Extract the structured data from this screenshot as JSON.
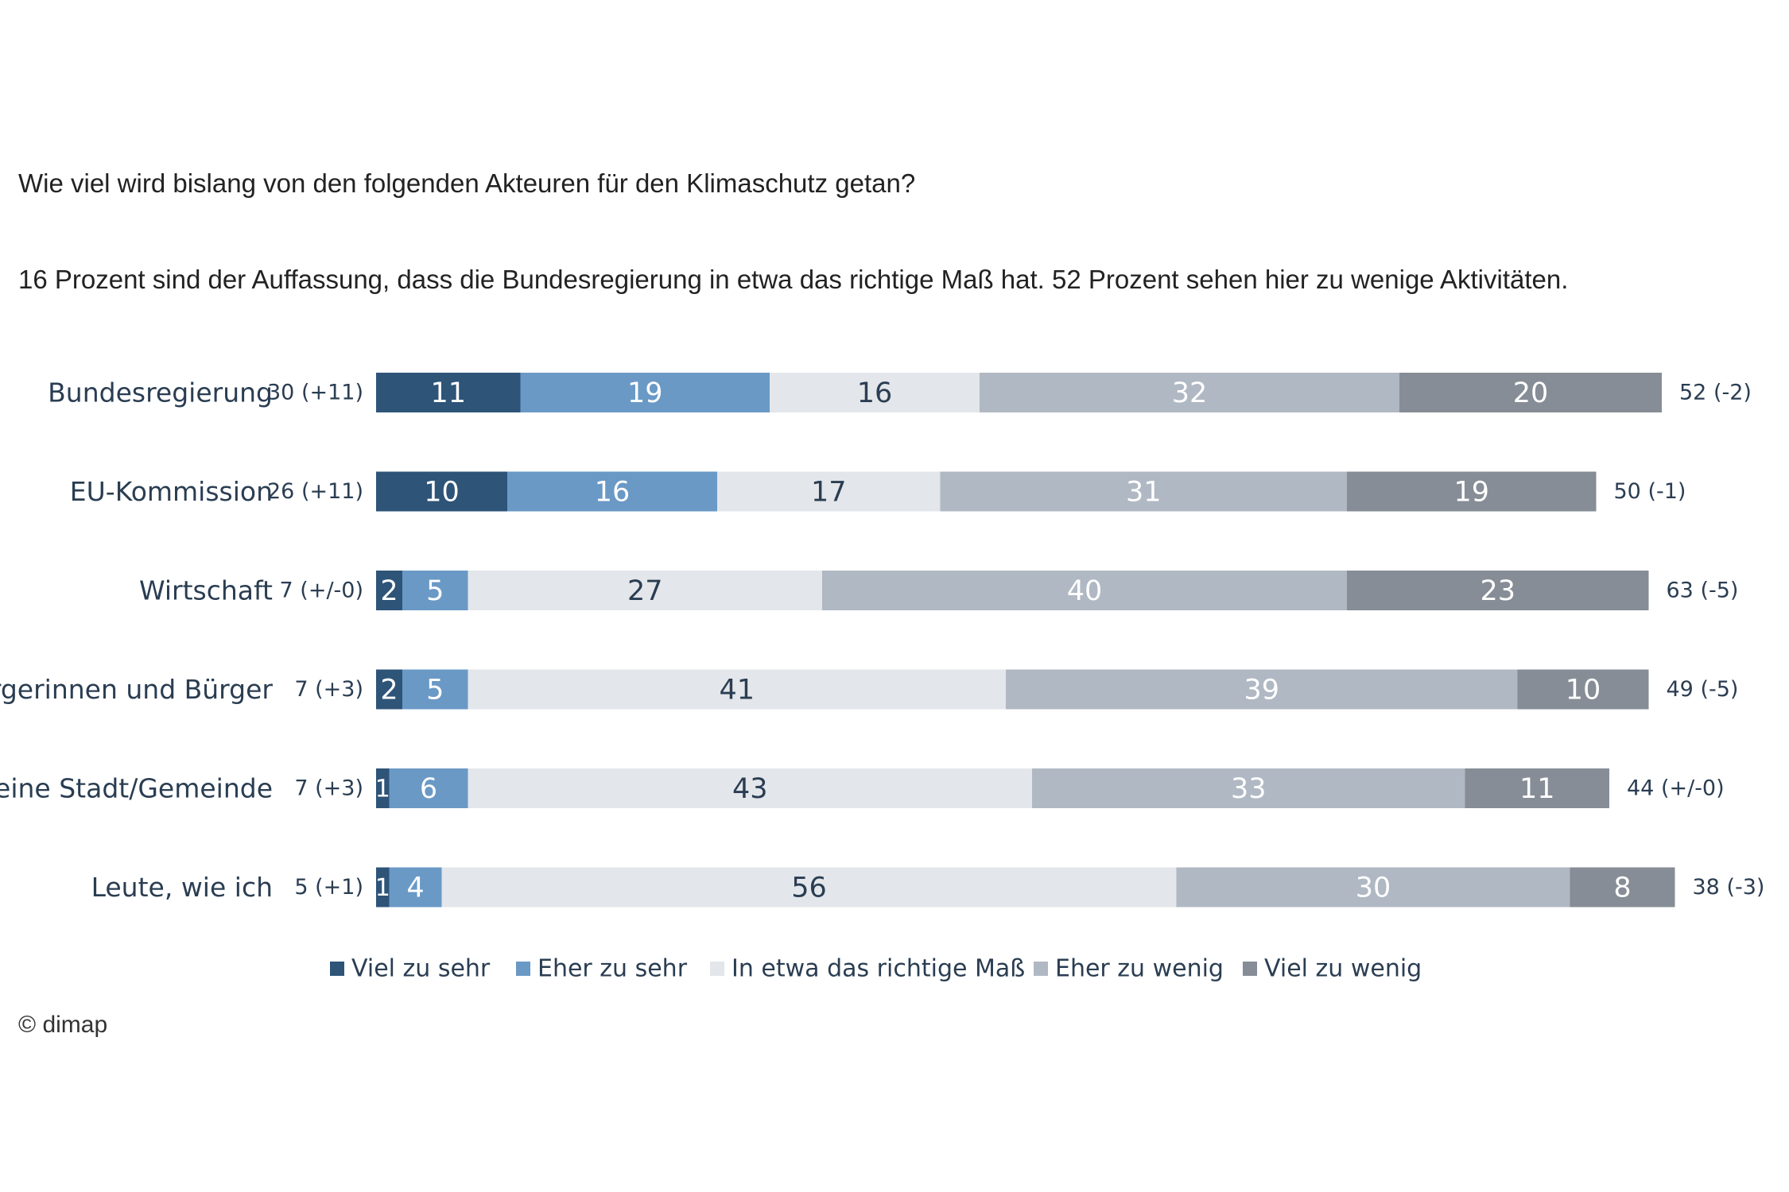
{
  "question": "Wie viel wird bislang von den folgenden Akteuren für den Klimaschutz getan?",
  "summary": "16 Prozent sind der Auffassung, dass die Bundesregierung in etwa das richtige Maß hat. 52 Prozent sehen hier zu wenige Aktivitäten.",
  "copyright": "© dimap",
  "chart_data": {
    "type": "bar",
    "orientation": "horizontal",
    "stacked": true,
    "title": "Wie viel wird bislang von den folgenden Akteuren für den Klimaschutz getan?",
    "categories": [
      "Bundesregierung",
      "EU-Kommission",
      "Wirtschaft",
      "Bürgerinnen und Bürger",
      "Meine Stadt/Gemeinde",
      "Leute, wie ich"
    ],
    "series": [
      {
        "name": "Viel zu sehr",
        "color": "#2e5478",
        "text_color": "#ffffff",
        "values": [
          11,
          10,
          2,
          2,
          1,
          1
        ]
      },
      {
        "name": "Eher zu sehr",
        "color": "#6a99c6",
        "text_color": "#ffffff",
        "values": [
          19,
          16,
          5,
          5,
          6,
          4
        ]
      },
      {
        "name": "In etwa das richtige Maß",
        "color": "#e3e6ea",
        "text_color": "#2a3d52",
        "values": [
          16,
          17,
          27,
          41,
          43,
          56
        ]
      },
      {
        "name": "Eher zu wenig",
        "color": "#b0b8c3",
        "text_color": "#ffffff",
        "values": [
          32,
          31,
          40,
          39,
          33,
          30
        ]
      },
      {
        "name": "Viel zu wenig",
        "color": "#868d96",
        "text_color": "#ffffff",
        "values": [
          20,
          19,
          23,
          10,
          11,
          8
        ]
      }
    ],
    "left_totals": [
      "30 (+11)",
      "26 (+11)",
      "7 (+/-0)",
      "7 (+3)",
      "7 (+3)",
      "5 (+1)"
    ],
    "right_totals": [
      "52 (-2)",
      "50 (-1)",
      "63 (-5)",
      "49 (-5)",
      "44 (+/-0)",
      "38 (-3)"
    ],
    "legend_position": "bottom",
    "grid": false
  }
}
